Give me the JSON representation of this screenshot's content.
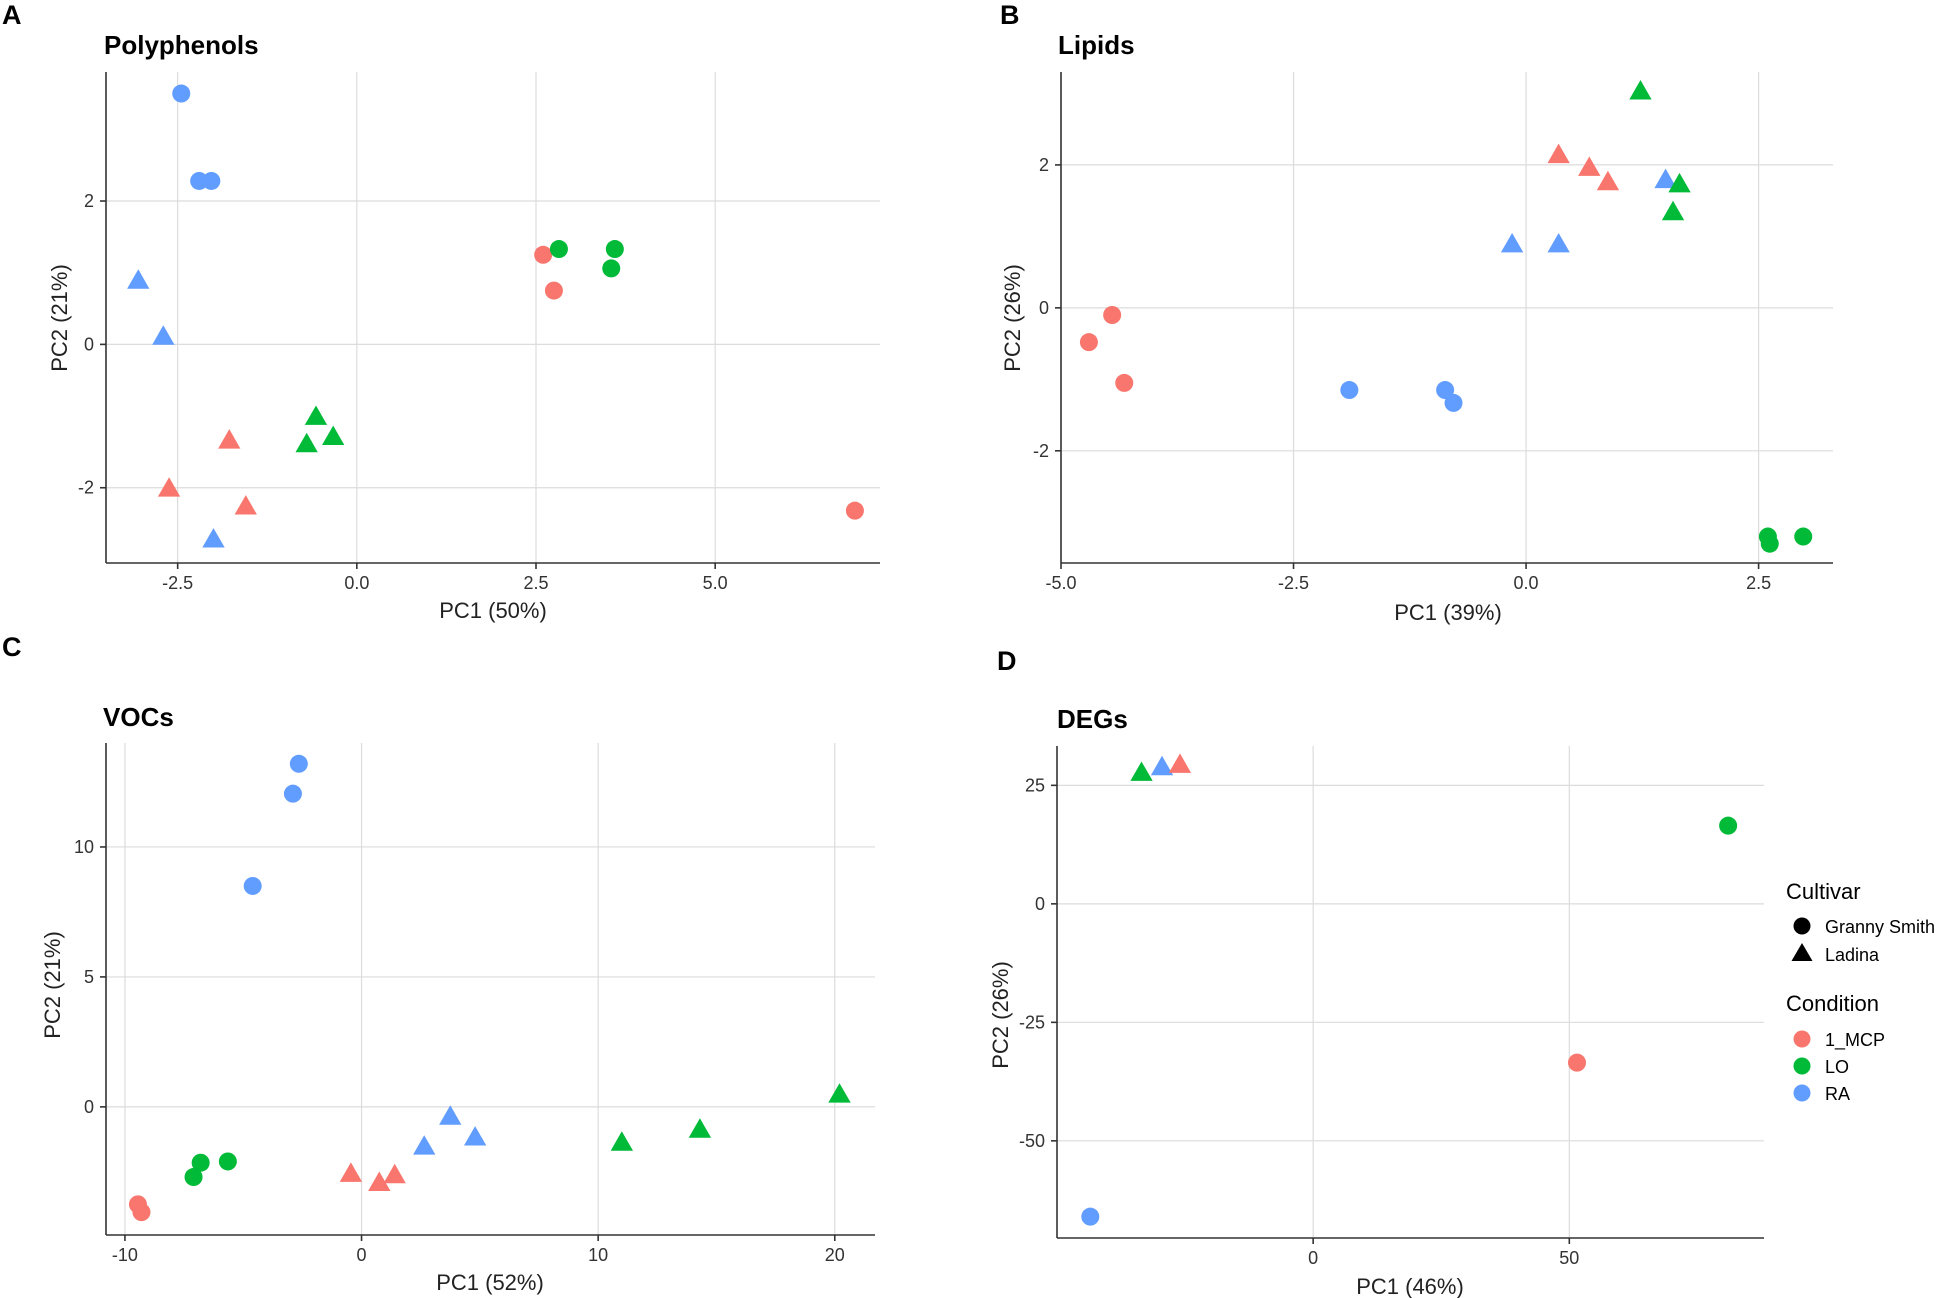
{
  "colors": {
    "1_MCP": "#F8766D",
    "LO": "#00BA38",
    "RA": "#619CFF"
  },
  "legend": {
    "cultivar_title": "Cultivar",
    "cultivar": [
      {
        "label": "Granny Smith",
        "shape": "circle"
      },
      {
        "label": "Ladina",
        "shape": "triangle"
      }
    ],
    "condition_title": "Condition",
    "condition": [
      {
        "label": "1_MCP",
        "color": "#F8766D"
      },
      {
        "label": "LO",
        "color": "#00BA38"
      },
      {
        "label": "RA",
        "color": "#619CFF"
      }
    ]
  },
  "chart_data": [
    {
      "panel": "A",
      "type": "scatter",
      "title": "Polyphenols",
      "xlabel": "PC1 (50%)",
      "ylabel": "PC2 (21%)",
      "xlim": [
        -3.5,
        7.3
      ],
      "ylim": [
        -3.05,
        3.8
      ],
      "xticks": [
        -2.5,
        0.0,
        2.5,
        5.0
      ],
      "xtick_labels": [
        "-2.5",
        "0.0",
        "2.5",
        "5.0"
      ],
      "yticks": [
        -2,
        0,
        2
      ],
      "ytick_labels": [
        "-2",
        "0",
        "2"
      ],
      "points": [
        {
          "x": -2.45,
          "y": 3.5,
          "cultivar": "Granny Smith",
          "condition": "RA"
        },
        {
          "x": -2.2,
          "y": 2.28,
          "cultivar": "Granny Smith",
          "condition": "RA"
        },
        {
          "x": -2.03,
          "y": 2.28,
          "cultivar": "Granny Smith",
          "condition": "RA"
        },
        {
          "x": -3.05,
          "y": 0.88,
          "cultivar": "Ladina",
          "condition": "RA"
        },
        {
          "x": -2.7,
          "y": 0.1,
          "cultivar": "Ladina",
          "condition": "RA"
        },
        {
          "x": -2.0,
          "y": -2.73,
          "cultivar": "Ladina",
          "condition": "RA"
        },
        {
          "x": -1.78,
          "y": -1.35,
          "cultivar": "Ladina",
          "condition": "1_MCP"
        },
        {
          "x": -2.62,
          "y": -2.02,
          "cultivar": "Ladina",
          "condition": "1_MCP"
        },
        {
          "x": -1.55,
          "y": -2.27,
          "cultivar": "Ladina",
          "condition": "1_MCP"
        },
        {
          "x": -0.57,
          "y": -1.02,
          "cultivar": "Ladina",
          "condition": "LO"
        },
        {
          "x": -0.33,
          "y": -1.3,
          "cultivar": "Ladina",
          "condition": "LO"
        },
        {
          "x": -0.7,
          "y": -1.4,
          "cultivar": "Ladina",
          "condition": "LO"
        },
        {
          "x": 2.6,
          "y": 1.25,
          "cultivar": "Granny Smith",
          "condition": "1_MCP"
        },
        {
          "x": 2.75,
          "y": 0.75,
          "cultivar": "Granny Smith",
          "condition": "1_MCP"
        },
        {
          "x": 6.95,
          "y": -2.32,
          "cultivar": "Granny Smith",
          "condition": "1_MCP"
        },
        {
          "x": 2.82,
          "y": 1.33,
          "cultivar": "Granny Smith",
          "condition": "LO"
        },
        {
          "x": 3.6,
          "y": 1.33,
          "cultivar": "Granny Smith",
          "condition": "LO"
        },
        {
          "x": 3.55,
          "y": 1.06,
          "cultivar": "Granny Smith",
          "condition": "LO"
        }
      ]
    },
    {
      "panel": "B",
      "type": "scatter",
      "title": "Lipids",
      "xlabel": "PC1 (39%)",
      "ylabel": "PC2 (26%)",
      "xlim": [
        -5.0,
        3.3
      ],
      "ylim": [
        -3.57,
        3.3
      ],
      "xticks": [
        -5.0,
        -2.5,
        0.0,
        2.5
      ],
      "xtick_labels": [
        "-5.0",
        "-2.5",
        "0.0",
        "2.5"
      ],
      "yticks": [
        -2,
        0,
        2
      ],
      "ytick_labels": [
        "-2",
        "0",
        "2"
      ],
      "points": [
        {
          "x": -4.45,
          "y": -0.1,
          "cultivar": "Granny Smith",
          "condition": "1_MCP"
        },
        {
          "x": -4.7,
          "y": -0.48,
          "cultivar": "Granny Smith",
          "condition": "1_MCP"
        },
        {
          "x": -4.32,
          "y": -1.05,
          "cultivar": "Granny Smith",
          "condition": "1_MCP"
        },
        {
          "x": -1.9,
          "y": -1.15,
          "cultivar": "Granny Smith",
          "condition": "RA"
        },
        {
          "x": -0.87,
          "y": -1.15,
          "cultivar": "Granny Smith",
          "condition": "RA"
        },
        {
          "x": -0.78,
          "y": -1.33,
          "cultivar": "Granny Smith",
          "condition": "RA"
        },
        {
          "x": -0.15,
          "y": 0.88,
          "cultivar": "Ladina",
          "condition": "RA"
        },
        {
          "x": 0.35,
          "y": 0.88,
          "cultivar": "Ladina",
          "condition": "RA"
        },
        {
          "x": 1.5,
          "y": 1.78,
          "cultivar": "Ladina",
          "condition": "RA"
        },
        {
          "x": 0.35,
          "y": 2.13,
          "cultivar": "Ladina",
          "condition": "1_MCP"
        },
        {
          "x": 0.68,
          "y": 1.95,
          "cultivar": "Ladina",
          "condition": "1_MCP"
        },
        {
          "x": 0.88,
          "y": 1.75,
          "cultivar": "Ladina",
          "condition": "1_MCP"
        },
        {
          "x": 1.23,
          "y": 3.02,
          "cultivar": "Ladina",
          "condition": "LO"
        },
        {
          "x": 1.65,
          "y": 1.72,
          "cultivar": "Ladina",
          "condition": "LO"
        },
        {
          "x": 1.58,
          "y": 1.33,
          "cultivar": "Ladina",
          "condition": "LO"
        },
        {
          "x": 2.6,
          "y": -3.2,
          "cultivar": "Granny Smith",
          "condition": "LO"
        },
        {
          "x": 2.62,
          "y": -3.3,
          "cultivar": "Granny Smith",
          "condition": "LO"
        },
        {
          "x": 2.98,
          "y": -3.2,
          "cultivar": "Granny Smith",
          "condition": "LO"
        }
      ]
    },
    {
      "panel": "C",
      "type": "scatter",
      "title": "VOCs",
      "xlabel": "PC1 (52%)",
      "ylabel": "PC2 (21%)",
      "xlim": [
        -10.8,
        21.7
      ],
      "ylim": [
        -4.93,
        14.0
      ],
      "xticks": [
        -10,
        0,
        10,
        20
      ],
      "xtick_labels": [
        "-10",
        "0",
        "10",
        "20"
      ],
      "yticks": [
        0,
        5,
        10
      ],
      "ytick_labels": [
        "0",
        "5",
        "10"
      ],
      "points": [
        {
          "x": -2.65,
          "y": 13.2,
          "cultivar": "Granny Smith",
          "condition": "RA"
        },
        {
          "x": -2.9,
          "y": 12.05,
          "cultivar": "Granny Smith",
          "condition": "RA"
        },
        {
          "x": -4.6,
          "y": 8.5,
          "cultivar": "Granny Smith",
          "condition": "RA"
        },
        {
          "x": -9.45,
          "y": -3.75,
          "cultivar": "Granny Smith",
          "condition": "1_MCP"
        },
        {
          "x": -9.3,
          "y": -4.05,
          "cultivar": "Granny Smith",
          "condition": "1_MCP"
        },
        {
          "x": -6.8,
          "y": -2.15,
          "cultivar": "Granny Smith",
          "condition": "LO"
        },
        {
          "x": -5.65,
          "y": -2.1,
          "cultivar": "Granny Smith",
          "condition": "LO"
        },
        {
          "x": -7.1,
          "y": -2.7,
          "cultivar": "Granny Smith",
          "condition": "LO"
        },
        {
          "x": -0.45,
          "y": -2.6,
          "cultivar": "Ladina",
          "condition": "1_MCP"
        },
        {
          "x": 0.75,
          "y": -2.95,
          "cultivar": "Ladina",
          "condition": "1_MCP"
        },
        {
          "x": 1.4,
          "y": -2.65,
          "cultivar": "Ladina",
          "condition": "1_MCP"
        },
        {
          "x": 3.75,
          "y": -0.4,
          "cultivar": "Ladina",
          "condition": "RA"
        },
        {
          "x": 2.65,
          "y": -1.55,
          "cultivar": "Ladina",
          "condition": "RA"
        },
        {
          "x": 4.8,
          "y": -1.2,
          "cultivar": "Ladina",
          "condition": "RA"
        },
        {
          "x": 11.0,
          "y": -1.4,
          "cultivar": "Ladina",
          "condition": "LO"
        },
        {
          "x": 14.3,
          "y": -0.9,
          "cultivar": "Ladina",
          "condition": "LO"
        },
        {
          "x": 20.2,
          "y": 0.45,
          "cultivar": "Ladina",
          "condition": "LO"
        }
      ]
    },
    {
      "panel": "D",
      "type": "scatter",
      "title": "DEGs",
      "xlabel": "PC1 (46%)",
      "ylabel": "PC2 (26%)",
      "xlim": [
        -50.0,
        88.0
      ],
      "ylim": [
        -70.5,
        33.3
      ],
      "xticks": [
        0,
        50
      ],
      "xtick_labels": [
        "0",
        "50"
      ],
      "yticks": [
        -50,
        -25,
        0,
        25
      ],
      "ytick_labels": [
        "-50",
        "-25",
        "0",
        "25"
      ],
      "points": [
        {
          "x": -33.5,
          "y": 27.5,
          "cultivar": "Ladina",
          "condition": "LO"
        },
        {
          "x": -29.5,
          "y": 28.7,
          "cultivar": "Ladina",
          "condition": "RA"
        },
        {
          "x": -26.0,
          "y": 29.2,
          "cultivar": "Ladina",
          "condition": "1_MCP"
        },
        {
          "x": 81.0,
          "y": 16.5,
          "cultivar": "Granny Smith",
          "condition": "LO"
        },
        {
          "x": 51.5,
          "y": -33.5,
          "cultivar": "Granny Smith",
          "condition": "1_MCP"
        },
        {
          "x": -43.5,
          "y": -66.0,
          "cultivar": "Granny Smith",
          "condition": "RA"
        }
      ]
    }
  ]
}
